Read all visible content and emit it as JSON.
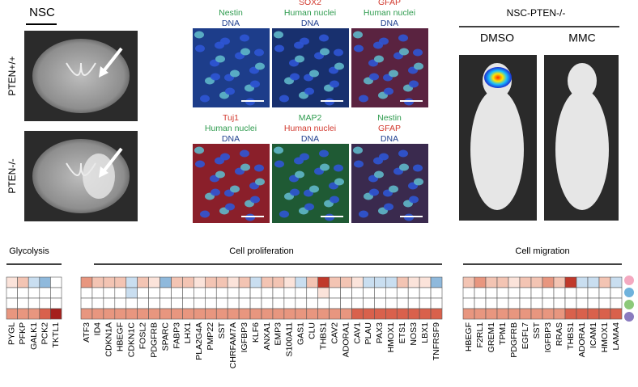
{
  "brain": {
    "title": "NSC",
    "rows": [
      "PTEN+/+",
      "PTEN-/-"
    ]
  },
  "stains": [
    {
      "labels": [
        {
          "text": "Nestin",
          "color": "#2e9b4e"
        },
        {
          "text": "DNA",
          "color": "#1f3f8f"
        }
      ],
      "color": "#1d3d8a"
    },
    {
      "labels": [
        {
          "text": "SOX2",
          "color": "#d23a2f"
        },
        {
          "text": "Human nuclei",
          "color": "#2e9b4e"
        },
        {
          "text": "DNA",
          "color": "#1f3f8f"
        }
      ],
      "color": "#18306e"
    },
    {
      "labels": [
        {
          "text": "GFAP",
          "color": "#d23a2f"
        },
        {
          "text": "Human nuclei",
          "color": "#2e9b4e"
        },
        {
          "text": "DNA",
          "color": "#1f3f8f"
        }
      ],
      "color": "#5a2340"
    },
    {
      "labels": [
        {
          "text": "Tuj1",
          "color": "#d23a2f"
        },
        {
          "text": "Human nuclei",
          "color": "#2e9b4e"
        },
        {
          "text": "DNA",
          "color": "#1f3f8f"
        }
      ],
      "color": "#8a1f2a"
    },
    {
      "labels": [
        {
          "text": "MAP2",
          "color": "#2e9b4e"
        },
        {
          "text": "Human nuclei",
          "color": "#d23a2f"
        },
        {
          "text": "DNA",
          "color": "#1f3f8f"
        }
      ],
      "color": "#1f5a34"
    },
    {
      "labels": [
        {
          "text": "Nestin",
          "color": "#2e9b4e"
        },
        {
          "text": "GFAP",
          "color": "#d23a2f"
        },
        {
          "text": "DNA",
          "color": "#1f3f8f"
        }
      ],
      "color": "#3a2a4e"
    }
  ],
  "mice": {
    "title": "NSC-PTEN-/-",
    "groups": [
      "DMSO",
      "MMC"
    ]
  },
  "heatmaps": [
    {
      "title": "Glycolysis",
      "genes": [
        "PYGL",
        "PFKP",
        "GALK1",
        "PCK2",
        "TKTL1"
      ],
      "rows": [
        [
          "#fbe3da",
          "#f3c4b3",
          "#c9def0",
          "#8fb9dc",
          "#ffffff"
        ],
        [
          "#ffffff",
          "#ffffff",
          "#ffffff",
          "#ffffff",
          "#ffffff"
        ],
        [
          "#ffffff",
          "#ffffff",
          "#ffffff",
          "#ffffff",
          "#ffffff"
        ],
        [
          "#e8967f",
          "#e8967f",
          "#e8967f",
          "#d9614c",
          "#a5201c"
        ]
      ]
    },
    {
      "title": "Cell proliferation",
      "genes": [
        "ATF3",
        "ID4",
        "CDKN1A",
        "HBEGF",
        "CDKN1C",
        "FOSL2",
        "PDGFRB",
        "SPARC",
        "FABP3",
        "LHX1",
        "PLA2G4A",
        "PMP22",
        "SST",
        "CHRFAM7A",
        "IGFBP3",
        "KLF6",
        "ANXA1",
        "EMP3",
        "S100A11",
        "GAS1",
        "CLU",
        "THBS1",
        "CAV2",
        "ADORA1",
        "CAV1",
        "PLAU",
        "PAX3",
        "HMOX1",
        "ETS1",
        "NOS3",
        "LBX1",
        "TNFRSF9"
      ],
      "rows": [
        [
          "#e8967f",
          "#f3c4b3",
          "#f3c4b3",
          "#f3c4b3",
          "#c9def0",
          "#f3c4b3",
          "#fbe3da",
          "#8fb9dc",
          "#f3c4b3",
          "#f3c4b3",
          "#fbe3da",
          "#f3c4b3",
          "#f3c4b3",
          "#fbe3da",
          "#f3c4b3",
          "#c9def0",
          "#f3c4b3",
          "#f3c4b3",
          "#fbe3da",
          "#c9def0",
          "#f3c4b3",
          "#c0392b",
          "#f3c4b3",
          "#f3c4b3",
          "#fbe3da",
          "#c9def0",
          "#c9def0",
          "#c9def0",
          "#f3c4b3",
          "#fbe3da",
          "#fbe3da",
          "#8fb9dc"
        ],
        [
          "#ffffff",
          "#ffffff",
          "#ffffff",
          "#ffffff",
          "#c9def0",
          "#ffffff",
          "#ffffff",
          "#ffffff",
          "#ffffff",
          "#ffffff",
          "#ffffff",
          "#ffffff",
          "#ffffff",
          "#ffffff",
          "#ffffff",
          "#ffffff",
          "#ffffff",
          "#ffffff",
          "#ffffff",
          "#ffffff",
          "#ffffff",
          "#fbe3da",
          "#ffffff",
          "#ffffff",
          "#ffffff",
          "#ffffff",
          "#ffffff",
          "#ffffff",
          "#ffffff",
          "#ffffff",
          "#ffffff",
          "#ffffff"
        ],
        [
          "#ffffff",
          "#ffffff",
          "#ffffff",
          "#ffffff",
          "#ffffff",
          "#ffffff",
          "#ffffff",
          "#ffffff",
          "#ffffff",
          "#ffffff",
          "#ffffff",
          "#ffffff",
          "#ffffff",
          "#ffffff",
          "#ffffff",
          "#ffffff",
          "#ffffff",
          "#ffffff",
          "#ffffff",
          "#ffffff",
          "#ffffff",
          "#ffffff",
          "#ffffff",
          "#ffffff",
          "#ffffff",
          "#ffffff",
          "#ffffff",
          "#ffffff",
          "#ffffff",
          "#ffffff",
          "#ffffff",
          "#ffffff"
        ],
        [
          "#e8967f",
          "#e8967f",
          "#e8967f",
          "#e8967f",
          "#e8967f",
          "#e8967f",
          "#e8967f",
          "#e8967f",
          "#e8967f",
          "#e8967f",
          "#e8967f",
          "#e8967f",
          "#e8967f",
          "#e8967f",
          "#e8967f",
          "#e8967f",
          "#e8967f",
          "#e8967f",
          "#e8967f",
          "#e8967f",
          "#e8967f",
          "#e8967f",
          "#e8967f",
          "#e8967f",
          "#d9614c",
          "#d9614c",
          "#d9614c",
          "#d9614c",
          "#d9614c",
          "#d9614c",
          "#d9614c",
          "#d9614c"
        ]
      ]
    },
    {
      "title": "Cell migration",
      "genes": [
        "HBEGF",
        "F2RL1",
        "GREM1",
        "TPM1",
        "PDGFRB",
        "EGFL7",
        "SST",
        "IGFBP3",
        "RRAS",
        "THBS1",
        "ADORA1",
        "ICAM1",
        "HMOX1",
        "LAMA4"
      ],
      "rows": [
        [
          "#f3c4b3",
          "#e8967f",
          "#f3c4b3",
          "#f3c4b3",
          "#fbe3da",
          "#f3c4b3",
          "#f3c4b3",
          "#e8967f",
          "#f3c4b3",
          "#c0392b",
          "#c9def0",
          "#c9def0",
          "#f3c4b3",
          "#c9def0"
        ],
        [
          "#ffffff",
          "#ffffff",
          "#ffffff",
          "#ffffff",
          "#ffffff",
          "#ffffff",
          "#ffffff",
          "#ffffff",
          "#ffffff",
          "#ffffff",
          "#ffffff",
          "#ffffff",
          "#ffffff",
          "#ffffff"
        ],
        [
          "#ffffff",
          "#ffffff",
          "#ffffff",
          "#ffffff",
          "#ffffff",
          "#ffffff",
          "#ffffff",
          "#ffffff",
          "#ffffff",
          "#ffffff",
          "#ffffff",
          "#ffffff",
          "#ffffff",
          "#ffffff"
        ],
        [
          "#e8967f",
          "#e8967f",
          "#e8967f",
          "#e8967f",
          "#e8967f",
          "#e8967f",
          "#e8967f",
          "#e8967f",
          "#e8967f",
          "#d9614c",
          "#d9614c",
          "#d9614c",
          "#d9614c",
          "#d9614c"
        ]
      ]
    }
  ],
  "legend_colors": [
    "#f4a9c0",
    "#6fb2dc",
    "#8cc97a",
    "#8a7bbf"
  ]
}
